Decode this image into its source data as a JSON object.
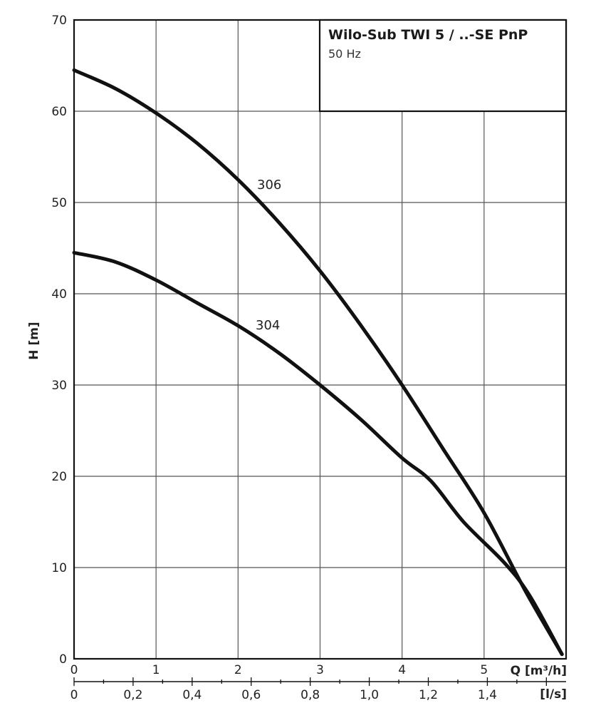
{
  "chart_data": {
    "type": "line",
    "title": "Wilo-Sub TWI 5 / ..-SE PnP",
    "subtitle": "50 Hz",
    "ylabel": "H [m]",
    "xlabel": "Q [m³/h]",
    "xlabel_secondary": "[l/s]",
    "ylim": [
      0,
      70
    ],
    "xlim": [
      0,
      6
    ],
    "y_ticks": [
      "0",
      "10",
      "20",
      "30",
      "40",
      "50",
      "60",
      "70"
    ],
    "x_ticks": [
      "0",
      "1",
      "2",
      "3",
      "4",
      "5"
    ],
    "x2_ticks": [
      "0",
      "0,2",
      "0,4",
      "0,6",
      "0,8",
      "1,0",
      "1,2",
      "1,4"
    ],
    "grid": true,
    "series": [
      {
        "name": "306",
        "x": [
          0,
          0.5,
          1,
          1.5,
          2,
          2.5,
          3,
          3.5,
          4,
          4.5,
          5,
          5.5,
          5.95
        ],
        "y": [
          64.5,
          62.5,
          59.8,
          56.5,
          52.5,
          47.8,
          42.5,
          36.5,
          30,
          23,
          16,
          7.5,
          0.5
        ]
      },
      {
        "name": "304",
        "x": [
          0,
          0.5,
          1,
          1.5,
          2,
          2.5,
          3,
          3.5,
          4,
          4.35,
          4.75,
          5.25,
          5.55,
          5.95
        ],
        "y": [
          44.5,
          43.5,
          41.5,
          39,
          36.5,
          33.5,
          30,
          26.2,
          22,
          19.5,
          15,
          10.5,
          7,
          0.5
        ]
      }
    ]
  }
}
